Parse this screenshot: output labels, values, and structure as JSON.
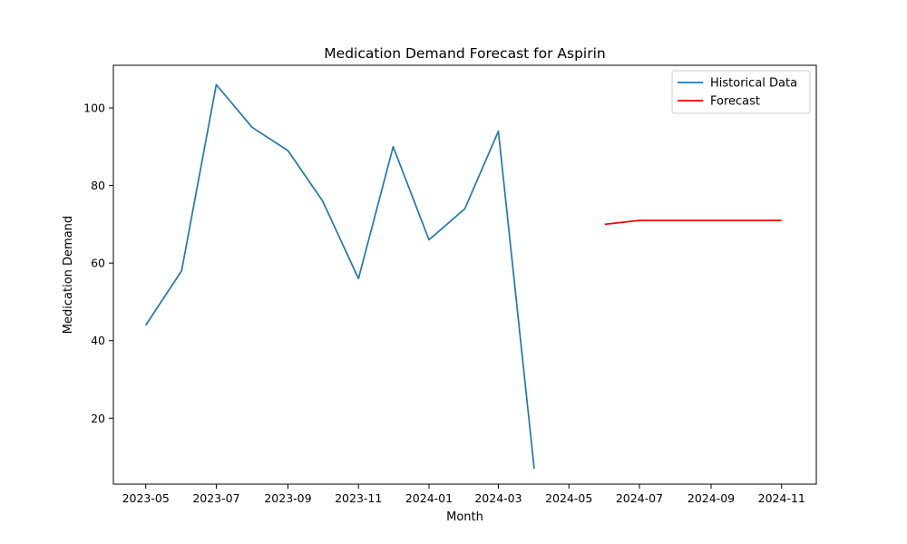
{
  "chart_data": {
    "type": "line",
    "title": "Medication Demand Forecast for Aspirin",
    "xlabel": "Month",
    "ylabel": "Medication Demand",
    "xlim": [
      "2023-04-03",
      "2024-12-01"
    ],
    "ylim": [
      3,
      111
    ],
    "x_ticks": [
      "2023-05",
      "2023-07",
      "2023-09",
      "2023-11",
      "2024-01",
      "2024-03",
      "2024-05",
      "2024-07",
      "2024-09",
      "2024-11"
    ],
    "y_ticks": [
      20,
      40,
      60,
      80,
      100
    ],
    "grid": false,
    "legend_position": "upper right",
    "series": [
      {
        "name": "Historical Data",
        "color": "#1f77b4",
        "x": [
          "2023-05-01",
          "2023-06-01",
          "2023-07-01",
          "2023-08-01",
          "2023-09-01",
          "2023-10-01",
          "2023-11-01",
          "2023-12-01",
          "2024-01-01",
          "2024-02-01",
          "2024-03-01",
          "2024-04-01"
        ],
        "values": [
          44,
          58,
          106,
          95,
          89,
          76,
          56,
          90,
          66,
          74,
          94,
          7
        ]
      },
      {
        "name": "Forecast",
        "color": "#ff0000",
        "x": [
          "2024-06-01",
          "2024-07-01",
          "2024-08-01",
          "2024-09-01",
          "2024-10-01",
          "2024-11-01"
        ],
        "values": [
          70,
          71,
          71,
          71,
          71,
          71
        ]
      }
    ]
  }
}
